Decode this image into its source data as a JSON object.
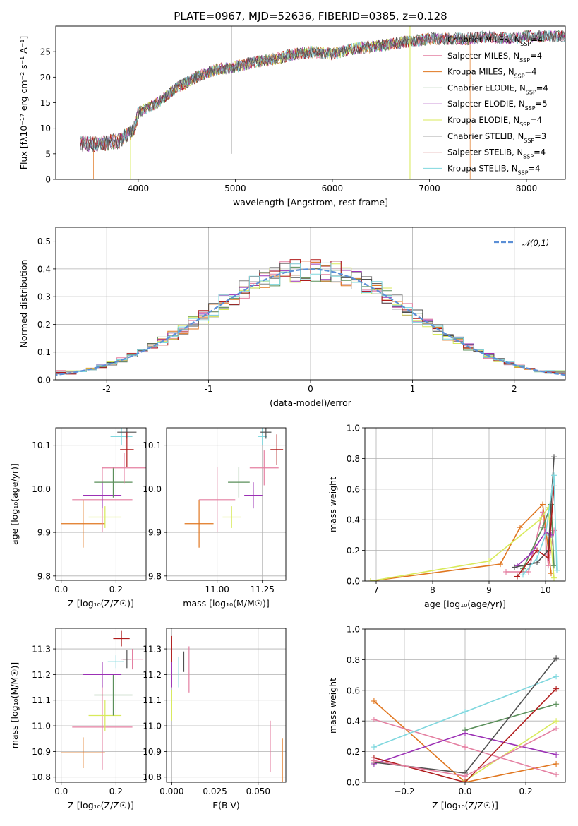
{
  "colors": [
    "#e0761f",
    "#e47fa1",
    "#c47a2e",
    "#5a8f5a",
    "#9b30b5",
    "#d8ea5a",
    "#505050",
    "#b01c1c",
    "#7fd7de"
  ],
  "p1_colors": [
    "#808080",
    "#e47fa1",
    "#e0761f",
    "#5a8f5a",
    "#9b30b5",
    "#d8ea5a",
    "#505050",
    "#b01c1c",
    "#7fd7de"
  ],
  "chart_data": [
    {
      "type": "line",
      "title": "PLATE=0967, MJD=52636, FIBERID=0385, z=0.128",
      "xlabel": "wavelength [Angstrom, rest frame]",
      "ylabel": "Flux [fλ10⁻¹⁷ erg cm⁻² s⁻¹ A⁻¹]",
      "xlim": [
        3150,
        8400
      ],
      "ylim": [
        0,
        30
      ],
      "xticks": [
        4000,
        5000,
        6000,
        7000,
        8000
      ],
      "yticks": [
        0,
        5,
        10,
        15,
        20,
        25
      ],
      "series": [
        {
          "name": "Chabrier MILES, N_SSP=4"
        },
        {
          "name": "Salpeter MILES, N_SSP=4"
        },
        {
          "name": "Kroupa MILES, N_SSP=4"
        },
        {
          "name": "Chabrier ELODIE, N_SSP=4"
        },
        {
          "name": "Salpeter ELODIE, N_SSP=5"
        },
        {
          "name": "Kroupa ELODIE, N_SSP=4"
        },
        {
          "name": "Chabrier STELIB, N_SSP=3"
        },
        {
          "name": "Salpeter STELIB, N_SSP=4"
        },
        {
          "name": "Kroupa STELIB, N_SSP=4"
        }
      ],
      "legend": "top-right",
      "continuum": {
        "x": [
          3400,
          3600,
          3800,
          3950,
          4000,
          4200,
          4400,
          4600,
          4800,
          5000,
          5200,
          5400,
          5600,
          5800,
          6000,
          6200,
          6400,
          6600,
          6800,
          7000,
          7200,
          7400,
          7600,
          7800,
          8000,
          8200,
          8400
        ],
        "y": [
          7,
          7,
          7.5,
          9.5,
          13,
          15,
          18,
          20,
          21.5,
          22,
          23,
          23.5,
          24.5,
          25,
          24.5,
          25.5,
          26,
          26.5,
          27,
          27.5,
          27.5,
          27.5,
          28,
          27.5,
          28,
          28,
          28
        ]
      }
    },
    {
      "type": "histogram",
      "xlabel": "(data-model)/error",
      "ylabel": "Normed distribution",
      "xlim": [
        -2.5,
        2.5
      ],
      "ylim": [
        0,
        0.55
      ],
      "xticks": [
        -2,
        -1,
        0,
        1,
        2
      ],
      "yticks": [
        0.0,
        0.1,
        0.2,
        0.3,
        0.4,
        0.5
      ],
      "grid": true,
      "curve_label": "𝒩(0,1)",
      "legend": "top-right"
    },
    {
      "type": "scatter",
      "xlabel": "Z [log₁₀(Z/Z☉)]",
      "ylabel": "age  [log₁₀(age/yr)]",
      "xlim": [
        -0.02,
        0.31
      ],
      "ylim": [
        9.79,
        10.14
      ],
      "xticks": [
        0.0,
        0.2
      ],
      "xticklabels": [
        "0.0",
        "0.2"
      ],
      "yticks": [
        9.8,
        9.9,
        10.0,
        10.1
      ],
      "yticklabels": [
        "9.8",
        "9.9",
        "10.0",
        "10.1"
      ],
      "grid": true,
      "points": [
        {
          "x": 0.08,
          "y": 9.92,
          "xe": 0.16,
          "ye": 0.11,
          "c": 0
        },
        {
          "x": 0.15,
          "y": 9.975,
          "xe": 0.22,
          "ye": 0.15,
          "c": 1
        },
        {
          "x": 0.15,
          "y": 9.985,
          "xe": 0.14,
          "ye": 0.06,
          "c": 4
        },
        {
          "x": 0.16,
          "y": 9.935,
          "xe": 0.12,
          "ye": 0.05,
          "c": 5
        },
        {
          "x": 0.19,
          "y": 10.015,
          "xe": 0.14,
          "ye": 0.07,
          "c": 3
        },
        {
          "x": 0.23,
          "y": 10.048,
          "xe": 0.16,
          "ye": 0.07,
          "c": 1
        },
        {
          "x": 0.22,
          "y": 10.12,
          "xe": 0.08,
          "ye": 0.04,
          "c": 8
        },
        {
          "x": 0.24,
          "y": 10.13,
          "xe": 0.07,
          "ye": 0.03,
          "c": 6
        },
        {
          "x": 0.24,
          "y": 10.09,
          "xe": 0.05,
          "ye": 0.08,
          "c": 7
        }
      ]
    },
    {
      "type": "scatter",
      "xlabel": "mass [log₁₀(M/M☉)]",
      "xlim": [
        10.72,
        11.38
      ],
      "ylim": [
        9.79,
        10.14
      ],
      "xticks": [
        11.0,
        11.25
      ],
      "xticklabels": [
        "11.00",
        "11.25"
      ],
      "yticks": [
        9.8,
        9.9,
        10.0,
        10.1
      ],
      "yticklabels": [
        "9.8",
        "9.9",
        "10.0",
        "10.1"
      ],
      "grid": true,
      "points": [
        {
          "x": 10.9,
          "y": 9.92,
          "xe": 0.16,
          "ye": 0.11,
          "c": 0
        },
        {
          "x": 11.0,
          "y": 9.975,
          "xe": 0.2,
          "ye": 0.15,
          "c": 1
        },
        {
          "x": 11.08,
          "y": 9.935,
          "xe": 0.1,
          "ye": 0.05,
          "c": 5
        },
        {
          "x": 11.12,
          "y": 10.015,
          "xe": 0.12,
          "ye": 0.07,
          "c": 3
        },
        {
          "x": 11.2,
          "y": 9.985,
          "xe": 0.1,
          "ye": 0.06,
          "c": 4
        },
        {
          "x": 11.26,
          "y": 10.048,
          "xe": 0.16,
          "ye": 0.08,
          "c": 1
        },
        {
          "x": 11.25,
          "y": 10.12,
          "xe": 0.05,
          "ye": 0.04,
          "c": 8
        },
        {
          "x": 11.27,
          "y": 10.13,
          "xe": 0.06,
          "ye": 0.03,
          "c": 6
        },
        {
          "x": 11.33,
          "y": 10.09,
          "xe": 0.07,
          "ye": 0.07,
          "c": 7
        }
      ]
    },
    {
      "type": "line",
      "xlabel": "age  [log₁₀(age/yr)]",
      "ylabel": "mass weight",
      "xlim": [
        6.8,
        10.35
      ],
      "ylim": [
        0,
        1
      ],
      "xticks": [
        7,
        8,
        9,
        10
      ],
      "yticks": [
        0.0,
        0.2,
        0.4,
        0.6,
        0.8,
        1.0
      ],
      "xticklabels": [
        "7",
        "8",
        "9",
        "10"
      ],
      "yticklabels": [
        "0.0",
        "0.2",
        "0.4",
        "0.6",
        "0.8",
        "1.0"
      ],
      "grid": true,
      "series": [
        {
          "c": 0,
          "x": [
            6.9,
            9.2,
            9.55,
            9.95,
            10.1
          ],
          "y": [
            0.0,
            0.11,
            0.35,
            0.5,
            0.05
          ]
        },
        {
          "c": 1,
          "x": [
            9.3,
            9.7,
            9.95,
            10.05,
            10.15
          ],
          "y": [
            0.06,
            0.06,
            0.45,
            0.1,
            0.33
          ]
        },
        {
          "c": 5,
          "x": [
            6.9,
            9.0,
            9.9,
            10.05,
            10.15
          ],
          "y": [
            0.0,
            0.13,
            0.4,
            0.48,
            0.02
          ]
        },
        {
          "c": 3,
          "x": [
            9.6,
            9.95,
            10.1,
            10.15
          ],
          "y": [
            0.08,
            0.35,
            0.5,
            0.1
          ]
        },
        {
          "c": 4,
          "x": [
            9.5,
            9.75,
            10.0,
            10.1
          ],
          "y": [
            0.1,
            0.18,
            0.32,
            0.3
          ]
        },
        {
          "c": 6,
          "x": [
            9.45,
            9.85,
            10.05,
            10.15
          ],
          "y": [
            0.09,
            0.12,
            0.2,
            0.81
          ]
        },
        {
          "c": 7,
          "x": [
            9.5,
            9.85,
            10.05,
            10.15
          ],
          "y": [
            0.03,
            0.2,
            0.15,
            0.62
          ]
        },
        {
          "c": 8,
          "x": [
            9.6,
            9.85,
            10.0,
            10.15,
            10.2
          ],
          "y": [
            0.04,
            0.15,
            0.3,
            0.69,
            0.07
          ]
        }
      ]
    },
    {
      "type": "scatter",
      "xlabel": "Z [log₁₀(Z/Z☉)]",
      "ylabel": "mass [log₁₀(M/M☉)]",
      "xlim": [
        -0.02,
        0.31
      ],
      "ylim": [
        10.78,
        11.38
      ],
      "xticks": [
        0.0,
        0.2
      ],
      "xticklabels": [
        "0.0",
        "0.2"
      ],
      "yticks": [
        10.8,
        10.9,
        11.0,
        11.1,
        11.2,
        11.3
      ],
      "yticklabels": [
        "10.8",
        "10.9",
        "11.0",
        "11.1",
        "11.2",
        "11.3"
      ],
      "grid": true,
      "points": [
        {
          "x": 0.08,
          "y": 10.895,
          "xe": 0.16,
          "ye": 0.12,
          "c": 0
        },
        {
          "x": 0.15,
          "y": 10.995,
          "xe": 0.22,
          "ye": 0.33,
          "c": 1
        },
        {
          "x": 0.16,
          "y": 11.04,
          "xe": 0.12,
          "ye": 0.12,
          "c": 5
        },
        {
          "x": 0.19,
          "y": 11.12,
          "xe": 0.14,
          "ye": 0.16,
          "c": 3
        },
        {
          "x": 0.15,
          "y": 11.2,
          "xe": 0.14,
          "ye": 0.1,
          "c": 4
        },
        {
          "x": 0.26,
          "y": 11.26,
          "xe": 0.08,
          "ye": 0.08,
          "c": 1
        },
        {
          "x": 0.2,
          "y": 11.25,
          "xe": 0.06,
          "ye": 0.05,
          "c": 8
        },
        {
          "x": 0.24,
          "y": 11.26,
          "xe": 0.03,
          "ye": 0.07,
          "c": 6
        },
        {
          "x": 0.22,
          "y": 11.34,
          "xe": 0.06,
          "ye": 0.06,
          "c": 7
        }
      ]
    },
    {
      "type": "scatter",
      "xlabel": "E(B-V)",
      "xlim": [
        -0.003,
        0.066
      ],
      "ylim": [
        10.78,
        11.38
      ],
      "xticks": [
        0.0,
        0.025,
        0.05
      ],
      "xticklabels": [
        "0.000",
        "0.025",
        "0.050"
      ],
      "yticks": [
        10.8,
        10.9,
        11.0,
        11.1,
        11.2,
        11.3
      ],
      "yticklabels": [
        "10.8",
        "10.9",
        "11.0",
        "11.1",
        "11.2",
        "11.3"
      ],
      "grid": true,
      "points": [
        {
          "x": 0.0,
          "y": 11.08,
          "xe": 0,
          "ye": 0.12,
          "c": 5
        },
        {
          "x": 0.0,
          "y": 11.2,
          "xe": 0,
          "ye": 0.1,
          "c": 4
        },
        {
          "x": 0.0,
          "y": 11.3,
          "xe": 0,
          "ye": 0.1,
          "c": 7
        },
        {
          "x": 0.004,
          "y": 11.21,
          "xe": 0,
          "ye": 0.12,
          "c": 8
        },
        {
          "x": 0.007,
          "y": 11.25,
          "xe": 0,
          "ye": 0.08,
          "c": 6
        },
        {
          "x": 0.01,
          "y": 11.22,
          "xe": 0,
          "ye": 0.18,
          "c": 1
        },
        {
          "x": 0.057,
          "y": 10.92,
          "xe": 0,
          "ye": 0.2,
          "c": 1
        },
        {
          "x": 0.064,
          "y": 10.84,
          "xe": 0,
          "ye": 0.22,
          "c": 0
        }
      ]
    },
    {
      "type": "line",
      "xlabel": "Z [log₁₀(Z/Z☉)]",
      "ylabel": "mass weight",
      "xlim": [
        -0.33,
        0.33
      ],
      "ylim": [
        0,
        1
      ],
      "xticks": [
        -0.2,
        0.0,
        0.2
      ],
      "yticks": [
        0.0,
        0.2,
        0.4,
        0.6,
        0.8,
        1.0
      ],
      "xticklabels": [
        "−0.2",
        "0.0",
        "0.2"
      ],
      "yticklabels": [
        "0.0",
        "0.2",
        "0.4",
        "0.6",
        "0.8",
        "1.0"
      ],
      "grid": true,
      "series": [
        {
          "c": 0,
          "x": [
            -0.3,
            0.0,
            0.3
          ],
          "y": [
            0.53,
            0.0,
            0.12
          ]
        },
        {
          "c": 1,
          "x": [
            -0.3,
            0.0,
            0.3
          ],
          "y": [
            0.41,
            0.23,
            0.05
          ]
        },
        {
          "c": 8,
          "x": [
            -0.3,
            0.0,
            0.3
          ],
          "y": [
            0.23,
            0.46,
            0.69
          ]
        },
        {
          "c": 3,
          "x": [
            0.0,
            0.3
          ],
          "y": [
            0.34,
            0.51
          ]
        },
        {
          "c": 4,
          "x": [
            -0.3,
            0.0,
            0.3
          ],
          "y": [
            0.12,
            0.32,
            0.18
          ]
        },
        {
          "c": 5,
          "x": [
            0.0,
            0.3
          ],
          "y": [
            0.01,
            0.4
          ]
        },
        {
          "c": 6,
          "x": [
            -0.3,
            0.0,
            0.3
          ],
          "y": [
            0.13,
            0.06,
            0.81
          ]
        },
        {
          "c": 7,
          "x": [
            -0.3,
            0.0,
            0.3
          ],
          "y": [
            0.16,
            0.0,
            0.61
          ]
        },
        {
          "c": 1,
          "x": [
            -0.3,
            0.0,
            0.3
          ],
          "y": [
            0.14,
            0.04,
            0.35
          ]
        }
      ]
    }
  ]
}
